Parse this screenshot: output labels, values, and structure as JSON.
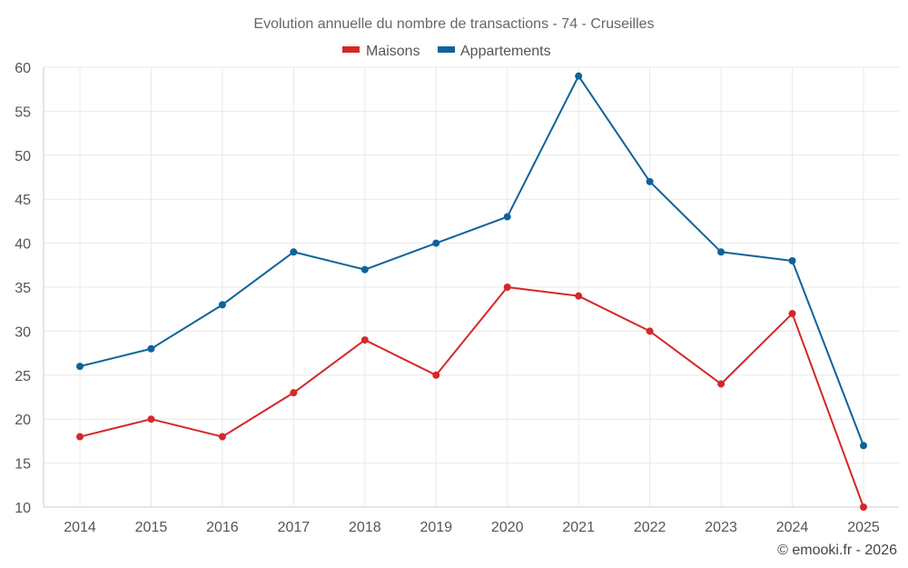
{
  "chart_data": {
    "type": "line",
    "title": "Evolution annuelle du nombre de transactions - 74 - Cruseilles",
    "categories": [
      "2014",
      "2015",
      "2016",
      "2017",
      "2018",
      "2019",
      "2020",
      "2021",
      "2022",
      "2023",
      "2024",
      "2025"
    ],
    "series": [
      {
        "name": "Maisons",
        "color": "#d62728",
        "values": [
          18,
          20,
          18,
          23,
          29,
          25,
          35,
          34,
          30,
          24,
          32,
          10
        ]
      },
      {
        "name": "Appartements",
        "color": "#0e6399",
        "values": [
          26,
          28,
          33,
          39,
          37,
          40,
          43,
          59,
          47,
          39,
          38,
          17
        ]
      }
    ],
    "y_ticks": [
      10,
      15,
      20,
      25,
      30,
      35,
      40,
      45,
      50,
      55,
      60
    ],
    "ylim": [
      10,
      60
    ],
    "xlabel": "",
    "ylabel": "",
    "grid": true,
    "legend_position": "top-center"
  },
  "credit": "© emooki.fr - 2026"
}
